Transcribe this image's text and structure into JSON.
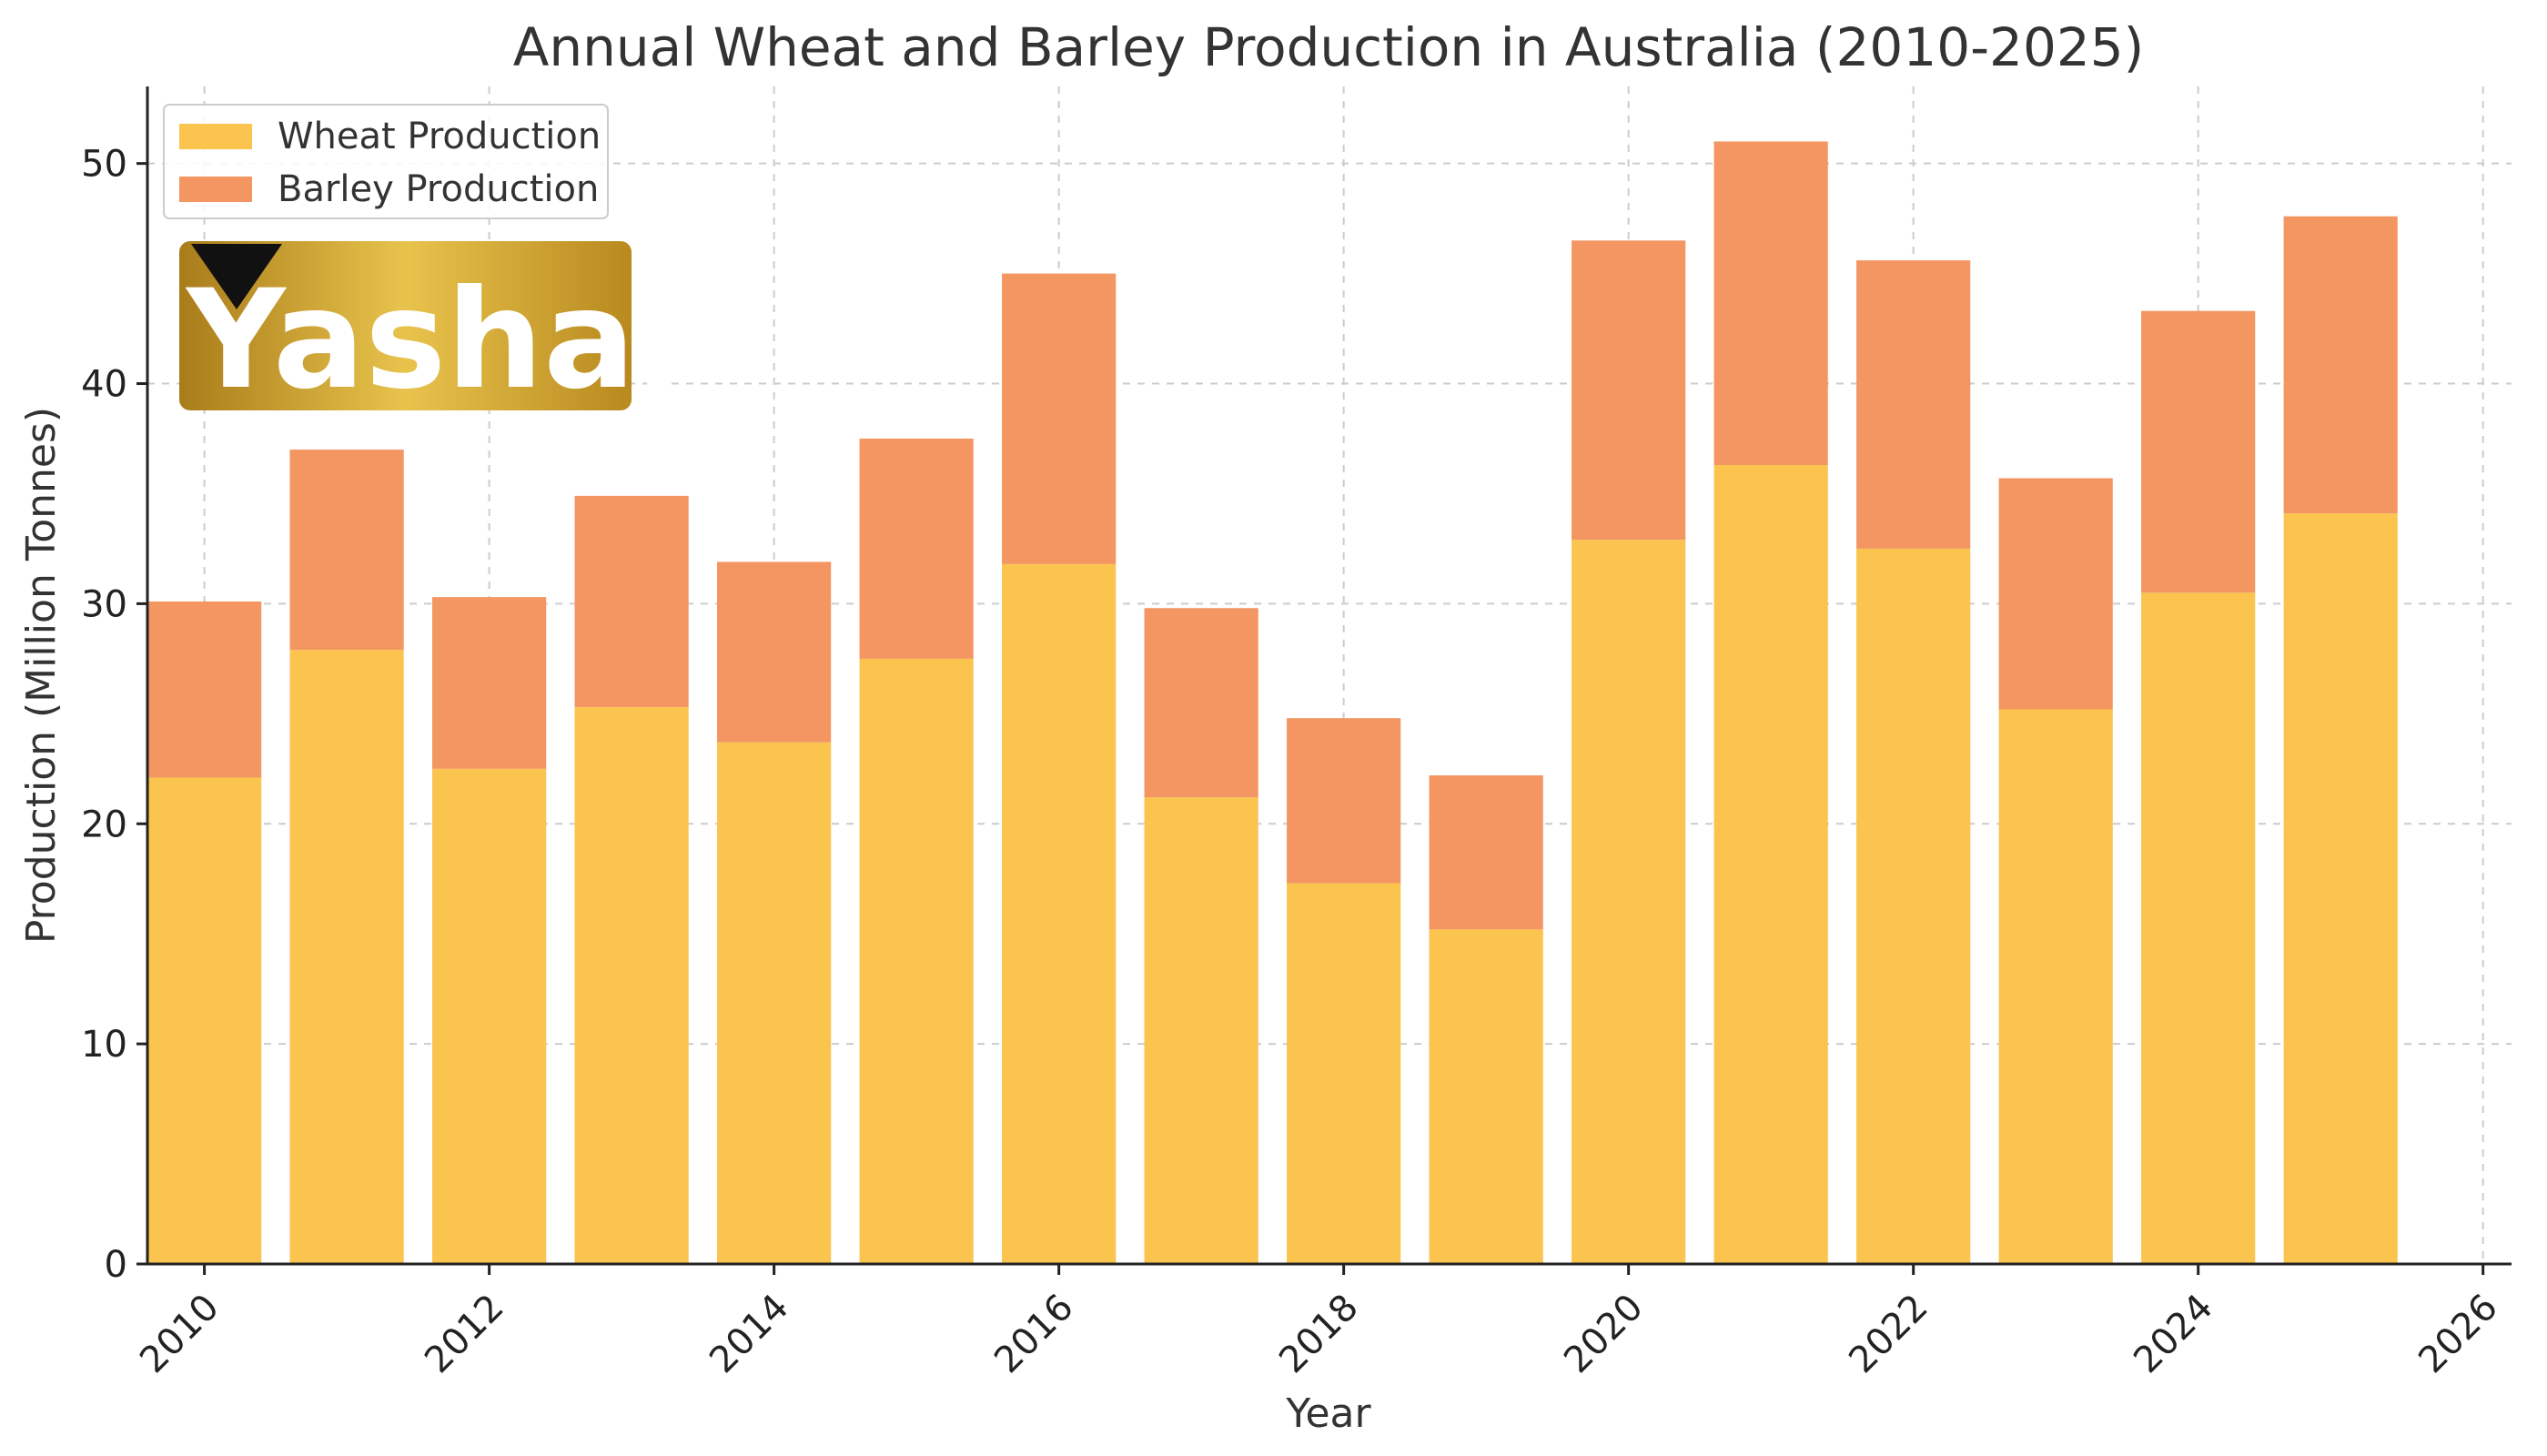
{
  "chart_data": {
    "type": "bar",
    "stacked": true,
    "title": "Annual Wheat and Barley Production in Australia (2010-2025)",
    "xlabel": "Year",
    "ylabel": "Production (Million Tonnes)",
    "x": [
      2010,
      2011,
      2012,
      2013,
      2014,
      2015,
      2016,
      2017,
      2018,
      2019,
      2020,
      2021,
      2022,
      2023,
      2024,
      2025
    ],
    "series": [
      {
        "name": "Wheat Production",
        "color": "#fac44e",
        "values": [
          22.1,
          27.9,
          22.5,
          25.3,
          23.7,
          27.5,
          31.8,
          21.2,
          17.3,
          15.2,
          32.9,
          36.3,
          32.5,
          25.2,
          30.5,
          34.1
        ]
      },
      {
        "name": "Barley Production",
        "color": "#f39662",
        "values": [
          8.0,
          9.1,
          7.8,
          9.6,
          8.2,
          10.0,
          13.2,
          8.6,
          7.5,
          7.0,
          13.6,
          14.7,
          13.1,
          10.5,
          12.8,
          13.5
        ]
      }
    ],
    "xticks": [
      "2010",
      "2012",
      "2014",
      "2016",
      "2018",
      "2020",
      "2022",
      "2024",
      "2026"
    ],
    "yticks": [
      "0",
      "10",
      "20",
      "30",
      "40",
      "50"
    ],
    "xlim": [
      2009.6,
      2026.2
    ],
    "ylim": [
      0,
      53.5
    ],
    "grid": true,
    "legend_position": "top-left"
  },
  "watermark": {
    "text": "Yashar",
    "colors": [
      "#b88a1e",
      "#e6c24a"
    ]
  }
}
